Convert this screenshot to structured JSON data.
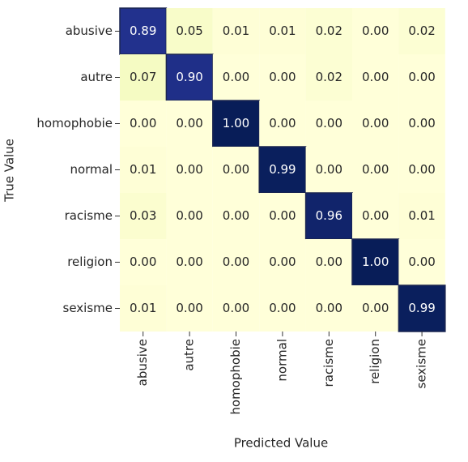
{
  "chart_data": {
    "type": "heatmap",
    "xlabel": "Predicted Value",
    "ylabel": "True Value",
    "x_categories": [
      "abusive",
      "autre",
      "homophobie",
      "normal",
      "racisme",
      "religion",
      "sexisme"
    ],
    "y_categories": [
      "abusive",
      "autre",
      "homophobie",
      "normal",
      "racisme",
      "religion",
      "sexisme"
    ],
    "values": [
      [
        0.89,
        0.05,
        0.01,
        0.01,
        0.02,
        0,
        0.02
      ],
      [
        0.07,
        0.9,
        0,
        0,
        0.02,
        0,
        0
      ],
      [
        0,
        0,
        1,
        0,
        0,
        0,
        0
      ],
      [
        0.01,
        0,
        0,
        0.99,
        0,
        0,
        0
      ],
      [
        0.03,
        0,
        0,
        0,
        0.96,
        0,
        0.01
      ],
      [
        0,
        0,
        0,
        0,
        0,
        1,
        0
      ],
      [
        0.01,
        0,
        0,
        0,
        0,
        0,
        0.99
      ]
    ],
    "value_labels": [
      [
        "0.89",
        "0.05",
        "0.01",
        "0.01",
        "0.02",
        "0.00",
        "0.02"
      ],
      [
        "0.07",
        "0.90",
        "0.00",
        "0.00",
        "0.02",
        "0.00",
        "0.00"
      ],
      [
        "0.00",
        "0.00",
        "1.00",
        "0.00",
        "0.00",
        "0.00",
        "0.00"
      ],
      [
        "0.01",
        "0.00",
        "0.00",
        "0.99",
        "0.00",
        "0.00",
        "0.00"
      ],
      [
        "0.03",
        "0.00",
        "0.00",
        "0.00",
        "0.96",
        "0.00",
        "0.01"
      ],
      [
        "0.00",
        "0.00",
        "0.00",
        "0.00",
        "0.00",
        "1.00",
        "0.00"
      ],
      [
        "0.01",
        "0.00",
        "0.00",
        "0.00",
        "0.00",
        "0.00",
        "0.99"
      ]
    ]
  }
}
